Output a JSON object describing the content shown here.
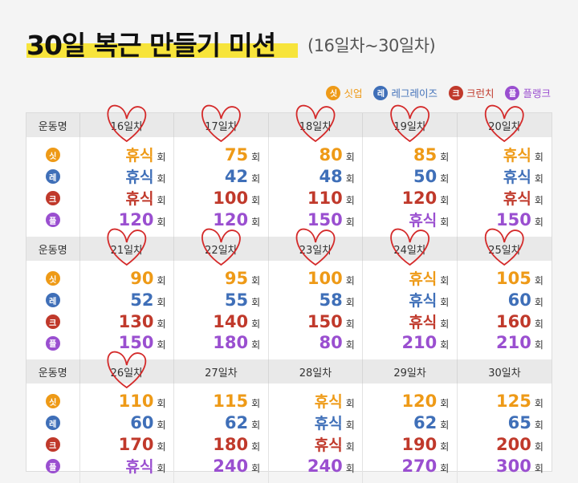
{
  "title": "30일 복근 만들기 미션",
  "subtitle": "(16일차~30일차)",
  "legend": [
    {
      "badge": "싯",
      "label": "싯업",
      "color": "#ee9a17"
    },
    {
      "badge": "레",
      "label": "레그레이즈",
      "color": "#3f6fb8"
    },
    {
      "badge": "크",
      "label": "크런치",
      "color": "#c0392b"
    },
    {
      "badge": "플",
      "label": "플랭크",
      "color": "#9a4fd0"
    }
  ],
  "exercise_header": "운동명",
  "unit": "회",
  "exercises": [
    {
      "badge": "싯",
      "color": "#ee9a17"
    },
    {
      "badge": "레",
      "color": "#3f6fb8"
    },
    {
      "badge": "크",
      "color": "#c0392b"
    },
    {
      "badge": "플",
      "color": "#9a4fd0"
    }
  ],
  "rest_label": "휴식",
  "blocks": [
    {
      "days": [
        "16일차",
        "17일차",
        "18일차",
        "19일차",
        "20일차"
      ],
      "rows": [
        [
          "휴식",
          "75",
          "80",
          "85",
          "휴식"
        ],
        [
          "휴식",
          "42",
          "48",
          "50",
          "휴식"
        ],
        [
          "휴식",
          "100",
          "110",
          "120",
          "휴식"
        ],
        [
          "120",
          "120",
          "150",
          "휴식",
          "150"
        ]
      ]
    },
    {
      "days": [
        "21일차",
        "22일차",
        "23일차",
        "24일차",
        "25일차"
      ],
      "rows": [
        [
          "90",
          "95",
          "100",
          "휴식",
          "105"
        ],
        [
          "52",
          "55",
          "58",
          "휴식",
          "60"
        ],
        [
          "130",
          "140",
          "150",
          "휴식",
          "160"
        ],
        [
          "150",
          "180",
          "80",
          "210",
          "210"
        ]
      ]
    },
    {
      "days": [
        "26일차",
        "27일차",
        "28일차",
        "29일차",
        "30일차"
      ],
      "rows": [
        [
          "110",
          "115",
          "휴식",
          "120",
          "125"
        ],
        [
          "60",
          "62",
          "휴식",
          "62",
          "65"
        ],
        [
          "170",
          "180",
          "휴식",
          "190",
          "200"
        ],
        [
          "휴식",
          "240",
          "240",
          "270",
          "300"
        ]
      ]
    }
  ],
  "heart_marks": {
    "color": "#d42a2a",
    "checked_days": [
      "16일차",
      "17일차",
      "18일차",
      "19일차",
      "20일차",
      "21일차",
      "22일차",
      "23일차",
      "24일차",
      "25일차",
      "26일차"
    ]
  }
}
